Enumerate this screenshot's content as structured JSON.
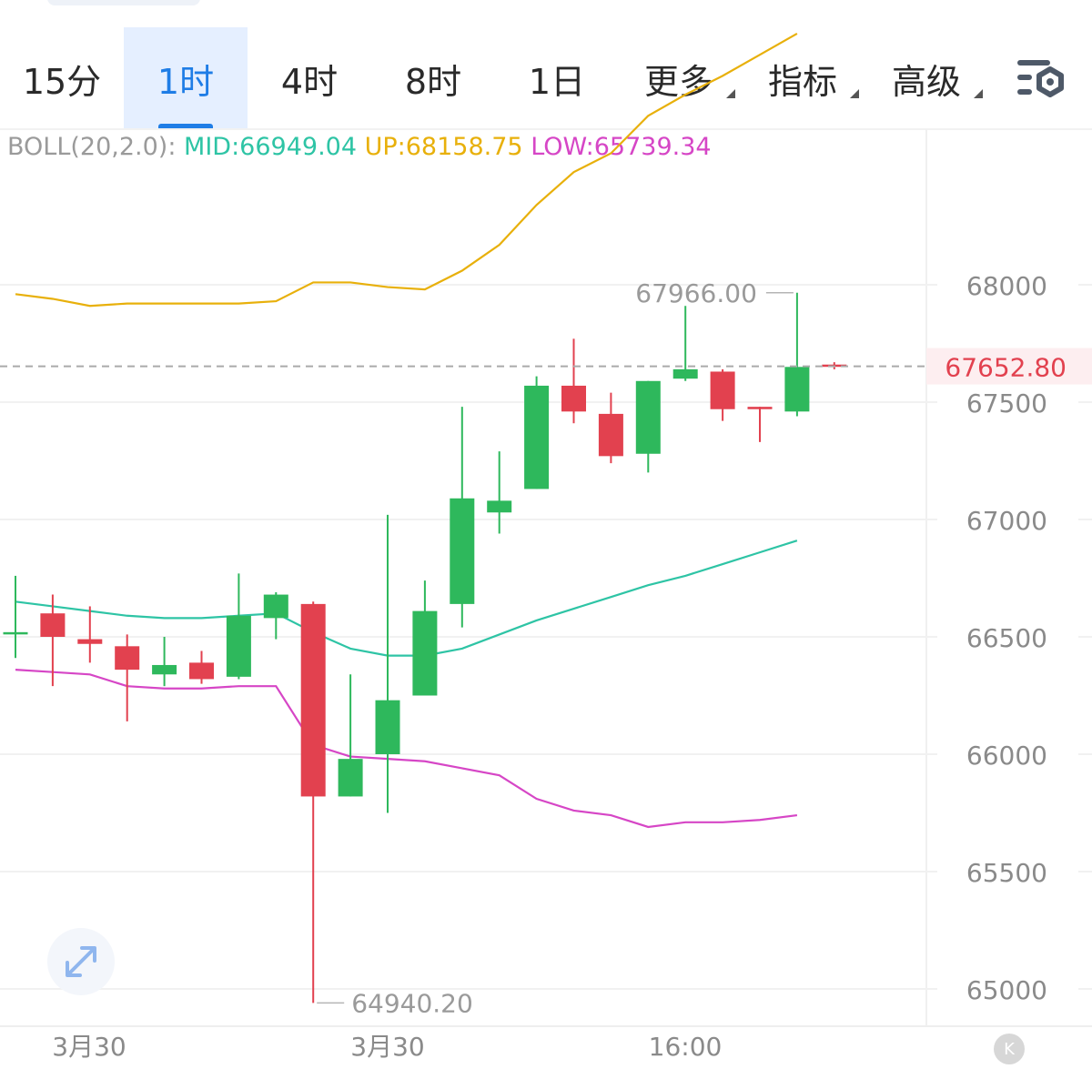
{
  "tabs": [
    {
      "label": "15分",
      "active": false,
      "caret": false
    },
    {
      "label": "1时",
      "active": true,
      "caret": false
    },
    {
      "label": "4时",
      "active": false,
      "caret": false
    },
    {
      "label": "8时",
      "active": false,
      "caret": false
    },
    {
      "label": "1日",
      "active": false,
      "caret": false
    },
    {
      "label": "更多",
      "active": false,
      "caret": true
    },
    {
      "label": "指标",
      "active": false,
      "caret": true
    },
    {
      "label": "高级",
      "active": false,
      "caret": true
    }
  ],
  "indicator": {
    "name": "BOLL(20,2.0):",
    "mid": "MID:66949.04",
    "up": "UP:68158.75",
    "low": "LOW:65739.34",
    "colors": {
      "name": "#9a9a9a",
      "mid": "#2ec4a5",
      "up": "#e8b00b",
      "low": "#d646c6"
    }
  },
  "current_price": "67652.80",
  "high_marker": "67966.00",
  "low_marker": "64940.20",
  "x_labels": [
    "3月30",
    "3月30",
    "16:00"
  ],
  "colors": {
    "up": "#2eb85c",
    "down": "#e2414f",
    "mid_line": "#2ec4a5",
    "upper_line": "#e8b00b",
    "lower_line": "#d646c6"
  },
  "icons": {
    "settings": "chart-settings-icon",
    "expand": "expand-arrows-icon",
    "k_line": "k-line-icon"
  },
  "k_button_label": "K",
  "chart_data": {
    "type": "candlestick",
    "y_ticks": [
      65000,
      65500,
      66000,
      66500,
      67000,
      67500,
      68000
    ],
    "ylim": [
      64880,
      68420
    ],
    "current_price": 67652.8,
    "candles": [
      {
        "o": 66520,
        "h": 66760,
        "l": 66410,
        "c": 66520
      },
      {
        "o": 66600,
        "h": 66680,
        "l": 66290,
        "c": 66500
      },
      {
        "o": 66490,
        "h": 66630,
        "l": 66390,
        "c": 66470
      },
      {
        "o": 66460,
        "h": 66510,
        "l": 66140,
        "c": 66360
      },
      {
        "o": 66340,
        "h": 66500,
        "l": 66290,
        "c": 66380
      },
      {
        "o": 66390,
        "h": 66440,
        "l": 66300,
        "c": 66320
      },
      {
        "o": 66330,
        "h": 66770,
        "l": 66320,
        "c": 66590
      },
      {
        "o": 66580,
        "h": 66690,
        "l": 66490,
        "c": 66680
      },
      {
        "o": 66640,
        "h": 66650,
        "l": 64940.2,
        "c": 65820
      },
      {
        "o": 65820,
        "h": 66340,
        "l": 65820,
        "c": 65980
      },
      {
        "o": 66000,
        "h": 67020,
        "l": 65750,
        "c": 66230
      },
      {
        "o": 66250,
        "h": 66740,
        "l": 66250,
        "c": 66610
      },
      {
        "o": 66640,
        "h": 67480,
        "l": 66540,
        "c": 67090
      },
      {
        "o": 67030,
        "h": 67290,
        "l": 66940,
        "c": 67080
      },
      {
        "o": 67130,
        "h": 67610,
        "l": 67130,
        "c": 67570
      },
      {
        "o": 67570,
        "h": 67770,
        "l": 67410,
        "c": 67460
      },
      {
        "o": 67450,
        "h": 67540,
        "l": 67240,
        "c": 67270
      },
      {
        "o": 67280,
        "h": 67590,
        "l": 67200,
        "c": 67590
      },
      {
        "o": 67600,
        "h": 67910,
        "l": 67590,
        "c": 67640
      },
      {
        "o": 67630,
        "h": 67640,
        "l": 67420,
        "c": 67470
      },
      {
        "o": 67480,
        "h": 67480,
        "l": 67330,
        "c": 67470
      },
      {
        "o": 67460,
        "h": 67966,
        "l": 67440,
        "c": 67650
      },
      {
        "o": 67660,
        "h": 67670,
        "l": 67640,
        "c": 67652.8
      }
    ],
    "boll_upper": [
      67960,
      67940,
      67910,
      67920,
      67920,
      67920,
      67920,
      67930,
      68010,
      68010,
      67990,
      67980,
      68060,
      68170,
      68340,
      68480,
      68560,
      68720,
      68810,
      68890,
      68980,
      69070,
      null
    ],
    "boll_mid": [
      66650,
      66630,
      66610,
      66590,
      66580,
      66580,
      66590,
      66600,
      66520,
      66450,
      66420,
      66420,
      66450,
      66510,
      66570,
      66620,
      66670,
      66720,
      66760,
      66810,
      66860,
      66910,
      null
    ],
    "boll_lower": [
      66360,
      66350,
      66340,
      66290,
      66280,
      66280,
      66290,
      66290,
      66040,
      65990,
      65980,
      65970,
      65940,
      65910,
      65810,
      65760,
      65740,
      65690,
      65710,
      65710,
      65720,
      65740,
      null
    ]
  }
}
